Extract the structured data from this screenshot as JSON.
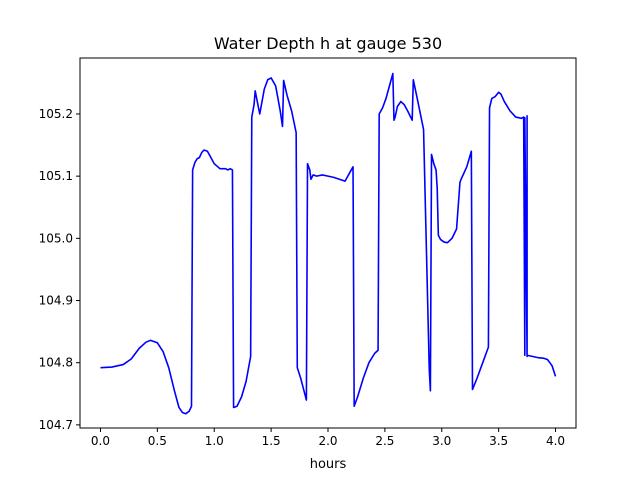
{
  "chart_data": {
    "type": "line",
    "title": "Water Depth h at gauge 530",
    "xlabel": "hours",
    "ylabel": "",
    "xlim": [
      -0.18,
      4.18
    ],
    "ylim": [
      104.695,
      105.29
    ],
    "xticks": [
      0.0,
      0.5,
      1.0,
      1.5,
      2.0,
      2.5,
      3.0,
      3.5,
      4.0
    ],
    "xtick_labels": [
      "0.0",
      "0.5",
      "1.0",
      "1.5",
      "2.0",
      "2.5",
      "3.0",
      "3.5",
      "4.0"
    ],
    "yticks": [
      104.7,
      104.8,
      104.9,
      105.0,
      105.1,
      105.2
    ],
    "ytick_labels": [
      "104.7",
      "104.8",
      "104.9",
      "105.0",
      "105.1",
      "105.2"
    ],
    "grid": false,
    "legend": "none",
    "colors": {
      "line": "#0000ff",
      "axes": "#000000",
      "background": "#ffffff"
    },
    "series": [
      {
        "x": [
          0.0,
          0.1,
          0.2,
          0.27,
          0.34,
          0.4,
          0.44,
          0.5,
          0.55,
          0.6,
          0.65,
          0.69,
          0.72,
          0.75,
          0.78,
          0.8,
          0.81,
          0.83,
          0.85,
          0.87,
          0.89,
          0.91,
          0.94,
          0.97,
          1.0,
          1.05,
          1.1,
          1.12,
          1.14,
          1.16,
          1.17,
          1.2,
          1.24,
          1.28,
          1.32,
          1.33,
          1.35,
          1.36,
          1.4,
          1.44,
          1.47,
          1.5,
          1.54,
          1.58,
          1.6,
          1.61,
          1.64,
          1.68,
          1.72,
          1.73,
          1.76,
          1.81,
          1.82,
          1.84,
          1.85,
          1.87,
          1.9,
          1.95,
          2.0,
          2.05,
          2.1,
          2.15,
          2.22,
          2.23,
          2.26,
          2.31,
          2.36,
          2.41,
          2.44,
          2.45,
          2.48,
          2.51,
          2.54,
          2.57,
          2.58,
          2.59,
          2.61,
          2.64,
          2.67,
          2.7,
          2.74,
          2.75,
          2.79,
          2.84,
          2.89,
          2.9,
          2.91,
          2.93,
          2.95,
          2.96,
          2.97,
          2.99,
          3.02,
          3.05,
          3.09,
          3.13,
          3.16,
          3.17,
          3.22,
          3.26,
          3.27,
          3.31,
          3.36,
          3.41,
          3.42,
          3.44,
          3.47,
          3.5,
          3.52,
          3.55,
          3.6,
          3.65,
          3.7,
          3.72,
          3.73,
          3.73,
          3.75,
          3.75,
          3.75,
          3.8,
          3.85,
          3.9,
          3.93,
          3.95,
          3.97,
          4.0
        ],
        "values": [
          104.792,
          104.793,
          104.797,
          104.806,
          104.823,
          104.833,
          104.836,
          104.832,
          104.818,
          104.792,
          104.755,
          104.728,
          104.72,
          104.718,
          104.722,
          104.73,
          105.11,
          105.122,
          105.128,
          105.13,
          105.138,
          105.142,
          105.14,
          105.13,
          105.12,
          105.112,
          105.112,
          105.11,
          105.112,
          105.11,
          104.728,
          104.73,
          104.745,
          104.77,
          104.81,
          105.195,
          105.215,
          105.237,
          105.2,
          105.24,
          105.255,
          105.258,
          105.245,
          105.205,
          105.18,
          105.254,
          105.23,
          105.205,
          105.17,
          104.792,
          104.775,
          104.74,
          105.12,
          105.11,
          105.095,
          105.102,
          105.1,
          105.102,
          105.1,
          105.098,
          105.095,
          105.092,
          105.115,
          104.73,
          104.745,
          104.775,
          104.8,
          104.815,
          104.82,
          105.2,
          105.21,
          105.225,
          105.245,
          105.265,
          105.19,
          105.195,
          105.212,
          105.22,
          105.215,
          105.205,
          105.19,
          105.255,
          105.22,
          105.175,
          104.79,
          104.755,
          105.135,
          105.12,
          105.11,
          105.08,
          105.005,
          104.998,
          104.994,
          104.993,
          105.0,
          105.015,
          105.09,
          105.095,
          105.115,
          105.14,
          104.757,
          104.775,
          104.8,
          104.825,
          105.21,
          105.225,
          105.228,
          105.235,
          105.232,
          105.22,
          105.205,
          105.195,
          105.193,
          105.195,
          104.812,
          105.194,
          104.81,
          105.197,
          104.812,
          104.81,
          104.808,
          104.807,
          104.805,
          104.8,
          104.795,
          104.778
        ]
      }
    ]
  }
}
